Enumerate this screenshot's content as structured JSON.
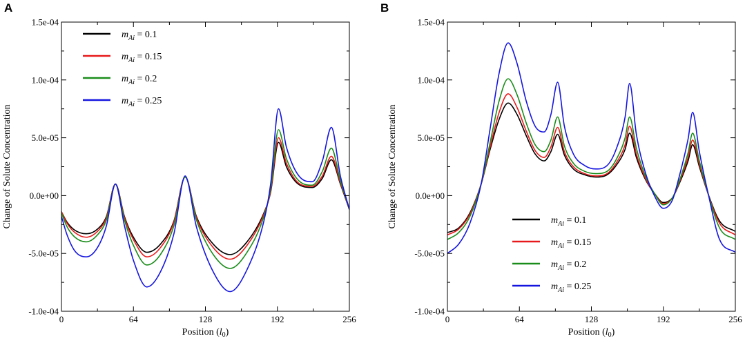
{
  "chart_data": [
    {
      "panel": "A",
      "type": "line",
      "title": "",
      "xlabel": "Position (l0)",
      "xlabel_var": "l",
      "xlabel_sub": "0",
      "ylabel": "Change of Solute Concentration",
      "xlim": [
        0,
        256
      ],
      "ylim": [
        -0.0001,
        0.00015
      ],
      "xticks": [
        0,
        64,
        128,
        192,
        256
      ],
      "xtick_labels": [
        "0",
        "64",
        "128",
        "192",
        "256"
      ],
      "yticks": [
        -0.0001,
        -5e-05,
        0,
        5e-05,
        0.0001,
        0.00015
      ],
      "ytick_labels": [
        "-1.0e-04",
        "-5.0e-05",
        "0.0e+00",
        "5.0e-05",
        "1.0e-04",
        "1.5e-04"
      ],
      "grid": false,
      "legend_position": "top-left",
      "series": [
        {
          "name": "m_Ai = 0.1",
          "label_value": "0.1",
          "color": "#000000",
          "x": [
            0,
            5,
            12,
            22,
            32,
            40,
            48,
            56,
            64,
            76,
            88,
            100,
            110,
            120,
            135,
            150,
            165,
            180,
            186,
            193,
            200,
            212,
            223,
            232,
            240,
            248,
            256
          ],
          "y": [
            -1.4e-05,
            -2.3e-05,
            -3e-05,
            -3.3e-05,
            -2.9e-05,
            -1.8e-05,
            1e-05,
            -1.8e-05,
            -3.6e-05,
            -4.9e-05,
            -4.2e-05,
            -2.2e-05,
            1.6e-05,
            -1.8e-05,
            -4.2e-05,
            -5.1e-05,
            -4e-05,
            -1.5e-05,
            3e-06,
            4.6e-05,
            2.5e-05,
            9e-06,
            7e-06,
            1.5e-05,
            3.1e-05,
            1e-05,
            -1.2e-05
          ]
        },
        {
          "name": "m_Ai = 0.15",
          "label_value": "0.15",
          "color": "#e8191a",
          "x": [
            0,
            5,
            12,
            22,
            32,
            40,
            48,
            56,
            64,
            76,
            88,
            100,
            110,
            120,
            135,
            150,
            165,
            180,
            186,
            193,
            200,
            212,
            223,
            232,
            240,
            248,
            256
          ],
          "y": [
            -1.4e-05,
            -2.4e-05,
            -3.2e-05,
            -3.6e-05,
            -3.1e-05,
            -1.9e-05,
            1e-05,
            -1.9e-05,
            -3.8e-05,
            -5.3e-05,
            -4.5e-05,
            -2.3e-05,
            1.6e-05,
            -1.9e-05,
            -4.5e-05,
            -5.5e-05,
            -4.3e-05,
            -1.6e-05,
            4e-06,
            5e-05,
            2.8e-05,
            1e-05,
            8e-06,
            1.7e-05,
            3.4e-05,
            1.1e-05,
            -1.2e-05
          ]
        },
        {
          "name": "m_Ai = 0.2",
          "label_value": "0.2",
          "color": "#1a8c1a",
          "x": [
            0,
            5,
            12,
            22,
            32,
            40,
            48,
            56,
            64,
            76,
            88,
            100,
            110,
            120,
            135,
            150,
            165,
            180,
            186,
            193,
            200,
            212,
            223,
            232,
            240,
            248,
            256
          ],
          "y": [
            -1.5e-05,
            -2.7e-05,
            -3.6e-05,
            -4e-05,
            -3.4e-05,
            -2.1e-05,
            1e-05,
            -2.1e-05,
            -4.3e-05,
            -6e-05,
            -5.1e-05,
            -2.6e-05,
            1.6e-05,
            -2.1e-05,
            -5.1e-05,
            -6.3e-05,
            -4.9e-05,
            -1.8e-05,
            6e-06,
            5.7e-05,
            3.2e-05,
            1.2e-05,
            9e-06,
            2.1e-05,
            4.1e-05,
            1.3e-05,
            -1.2e-05
          ]
        },
        {
          "name": "m_Ai = 0.25",
          "label_value": "0.25",
          "color": "#1515e0",
          "x": [
            0,
            5,
            12,
            22,
            32,
            40,
            48,
            56,
            64,
            76,
            88,
            100,
            110,
            120,
            135,
            150,
            165,
            180,
            186,
            193,
            200,
            212,
            223,
            232,
            240,
            248,
            256
          ],
          "y": [
            -1.8e-05,
            -3.4e-05,
            -4.8e-05,
            -5.3e-05,
            -4.5e-05,
            -2.6e-05,
            1e-05,
            -2.6e-05,
            -5.6e-05,
            -7.9e-05,
            -6.6e-05,
            -3.3e-05,
            1.7e-05,
            -2.7e-05,
            -6.6e-05,
            -8.3e-05,
            -6.4e-05,
            -2.2e-05,
            1e-05,
            7.5e-05,
            4.2e-05,
            1.6e-05,
            1.2e-05,
            3e-05,
            5.9e-05,
            1.7e-05,
            -1.2e-05
          ]
        }
      ]
    },
    {
      "panel": "B",
      "type": "line",
      "title": "",
      "xlabel": "Position (l0)",
      "xlabel_var": "l",
      "xlabel_sub": "0",
      "ylabel": "Change of Solute Concentration",
      "xlim": [
        0,
        256
      ],
      "ylim": [
        -0.0001,
        0.00015
      ],
      "xticks": [
        0,
        64,
        128,
        192,
        256
      ],
      "xtick_labels": [
        "0",
        "64",
        "128",
        "192",
        "256"
      ],
      "yticks": [
        -0.0001,
        -5e-05,
        0,
        5e-05,
        0.0001,
        0.00015
      ],
      "ytick_labels": [
        "-1.0e-04",
        "-5.0e-05",
        "0.0e+00",
        "5.0e-05",
        "1.0e-04",
        "1.5e-04"
      ],
      "grid": false,
      "legend_position": "bottom-center",
      "series": [
        {
          "name": "m_Ai = 0.1",
          "label_value": "0.1",
          "color": "#000000",
          "x": [
            0,
            10,
            20,
            30,
            38,
            46,
            54,
            62,
            70,
            78,
            86,
            92,
            98,
            104,
            112,
            122,
            132,
            142,
            150,
            158,
            162,
            168,
            176,
            184,
            192,
            200,
            206,
            214,
            218,
            224,
            232,
            242,
            256
          ],
          "y": [
            -3.2e-05,
            -2.8e-05,
            -1.5e-05,
            1e-05,
            4e-05,
            6.6e-05,
            8e-05,
            7e-05,
            5.2e-05,
            3.6e-05,
            3e-05,
            3.8e-05,
            5.3e-05,
            3.5e-05,
            2.3e-05,
            1.8e-05,
            1.6e-05,
            1.8e-05,
            2.6e-05,
            4e-05,
            5.4e-05,
            3.3e-05,
            1.4e-05,
            2e-06,
            -6e-06,
            -2e-06,
            1e-05,
            3e-05,
            4.4e-05,
            2.5e-05,
            1e-06,
            -2.2e-05,
            -3.1e-05
          ]
        },
        {
          "name": "m_Ai = 0.15",
          "label_value": "0.15",
          "color": "#e8191a",
          "x": [
            0,
            10,
            20,
            30,
            38,
            46,
            54,
            62,
            70,
            78,
            86,
            92,
            98,
            104,
            112,
            122,
            132,
            142,
            150,
            158,
            162,
            168,
            176,
            184,
            192,
            200,
            206,
            214,
            218,
            224,
            232,
            242,
            256
          ],
          "y": [
            -3.4e-05,
            -2.9e-05,
            -1.6e-05,
            1e-05,
            4.2e-05,
            7.2e-05,
            8.8e-05,
            7.6e-05,
            5.6e-05,
            3.9e-05,
            3.3e-05,
            4.2e-05,
            5.9e-05,
            3.8e-05,
            2.5e-05,
            1.9e-05,
            1.7e-05,
            1.9e-05,
            2.8e-05,
            4.4e-05,
            6e-05,
            3.6e-05,
            1.5e-05,
            2e-06,
            -7e-06,
            -2e-06,
            1.1e-05,
            3.3e-05,
            4.8e-05,
            2.7e-05,
            1e-06,
            -2.4e-05,
            -3.4e-05
          ]
        },
        {
          "name": "m_Ai = 0.2",
          "label_value": "0.2",
          "color": "#1a8c1a",
          "x": [
            0,
            10,
            20,
            30,
            38,
            46,
            54,
            62,
            70,
            78,
            86,
            92,
            98,
            104,
            112,
            122,
            132,
            142,
            150,
            158,
            162,
            168,
            176,
            184,
            192,
            200,
            206,
            214,
            218,
            224,
            232,
            242,
            256
          ],
          "y": [
            -3.8e-05,
            -3.2e-05,
            -1.8e-05,
            1e-05,
            4.6e-05,
            8.2e-05,
            0.000101,
            8.7e-05,
            6.3e-05,
            4.4e-05,
            3.8e-05,
            4.8e-05,
            6.8e-05,
            4.3e-05,
            2.8e-05,
            2.1e-05,
            1.9e-05,
            2.1e-05,
            3.1e-05,
            5e-05,
            6.8e-05,
            4.1e-05,
            1.7e-05,
            2e-06,
            -8e-06,
            -2e-06,
            1.2e-05,
            3.7e-05,
            5.4e-05,
            3e-05,
            1e-06,
            -2.8e-05,
            -3.8e-05
          ]
        },
        {
          "name": "m_Ai = 0.25",
          "label_value": "0.25",
          "color": "#1515e0",
          "x": [
            0,
            10,
            20,
            30,
            38,
            46,
            54,
            62,
            70,
            78,
            86,
            92,
            98,
            104,
            112,
            122,
            132,
            142,
            150,
            158,
            162,
            168,
            176,
            184,
            192,
            200,
            206,
            214,
            218,
            224,
            232,
            242,
            256
          ],
          "y": [
            -5e-05,
            -4.2e-05,
            -2.4e-05,
            1e-05,
            5.8e-05,
            0.000106,
            0.000132,
            0.000114,
            8.2e-05,
            6e-05,
            5.5e-05,
            7e-05,
            9.8e-05,
            6e-05,
            3.6e-05,
            2.6e-05,
            2.3e-05,
            2.6e-05,
            4e-05,
            6.8e-05,
            9.7e-05,
            5.3e-05,
            2e-05,
            0.0,
            -1.1e-05,
            -4e-06,
            1.6e-05,
            4.9e-05,
            7.2e-05,
            3.8e-05,
            1e-06,
            -3.8e-05,
            -4.9e-05
          ]
        }
      ]
    }
  ]
}
